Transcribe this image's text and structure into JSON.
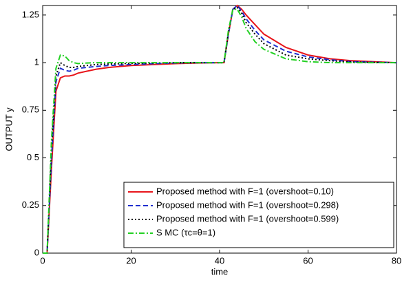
{
  "chart_data": {
    "type": "line",
    "x_label": "time",
    "y_label": "OUTPUT y",
    "x": [
      0,
      1,
      2,
      3,
      4,
      5,
      6,
      7,
      8,
      10,
      12,
      15,
      20,
      25,
      30,
      35,
      40,
      41,
      42,
      43,
      44,
      45,
      46,
      48,
      50,
      55,
      60,
      65,
      70,
      75,
      80
    ],
    "series": [
      {
        "name": "Proposed method with F=1 (overshoot=0.10)",
        "color": "#e8141a",
        "style": "solid",
        "values": [
          0,
          0,
          0.45,
          0.85,
          0.92,
          0.93,
          0.93,
          0.935,
          0.945,
          0.955,
          0.965,
          0.975,
          0.985,
          0.99,
          0.995,
          0.998,
          1,
          1,
          1.15,
          1.28,
          1.3,
          1.28,
          1.25,
          1.2,
          1.15,
          1.08,
          1.04,
          1.02,
          1.01,
          1.005,
          1.0
        ]
      },
      {
        "name": "Proposed method with F=1 (overshoot=0.298)",
        "color": "#1f2fd0",
        "style": "dashed",
        "values": [
          0,
          0,
          0.5,
          0.9,
          0.97,
          0.96,
          0.955,
          0.96,
          0.97,
          0.975,
          0.98,
          0.985,
          0.99,
          0.995,
          0.998,
          1,
          1,
          1,
          1.15,
          1.28,
          1.3,
          1.27,
          1.23,
          1.17,
          1.12,
          1.06,
          1.03,
          1.015,
          1.005,
          1.002,
          1.0
        ]
      },
      {
        "name": "Proposed method with F=1 (overshoot=0.599)",
        "color": "#000000",
        "style": "dotted",
        "values": [
          0,
          0,
          0.55,
          0.93,
          1.0,
          0.985,
          0.975,
          0.975,
          0.98,
          0.985,
          0.99,
          0.993,
          0.996,
          0.998,
          1,
          1,
          1,
          1,
          1.16,
          1.28,
          1.29,
          1.26,
          1.21,
          1.15,
          1.1,
          1.04,
          1.02,
          1.01,
          1.003,
          1.001,
          1.0
        ]
      },
      {
        "name": "S MC (τc=θ=1)",
        "color": "#22d022",
        "style": "dashdot",
        "values": [
          0,
          0,
          0.6,
          0.97,
          1.04,
          1.035,
          1.01,
          1.0,
          0.995,
          0.998,
          1,
          1,
          1,
          1,
          1,
          1,
          1,
          1,
          1.17,
          1.28,
          1.28,
          1.24,
          1.18,
          1.11,
          1.07,
          1.02,
          1.005,
          1.0,
          1,
          1,
          1
        ]
      }
    ],
    "xlim": [
      0,
      80
    ],
    "xticks": [
      0,
      20,
      40,
      60,
      80
    ],
    "ylim": [
      0,
      1.3
    ],
    "yticks": [
      0,
      0.25,
      {
        "value": 0.5,
        "label": "0 5"
      },
      0.75,
      1,
      1.25
    ],
    "legend": "lower right"
  }
}
